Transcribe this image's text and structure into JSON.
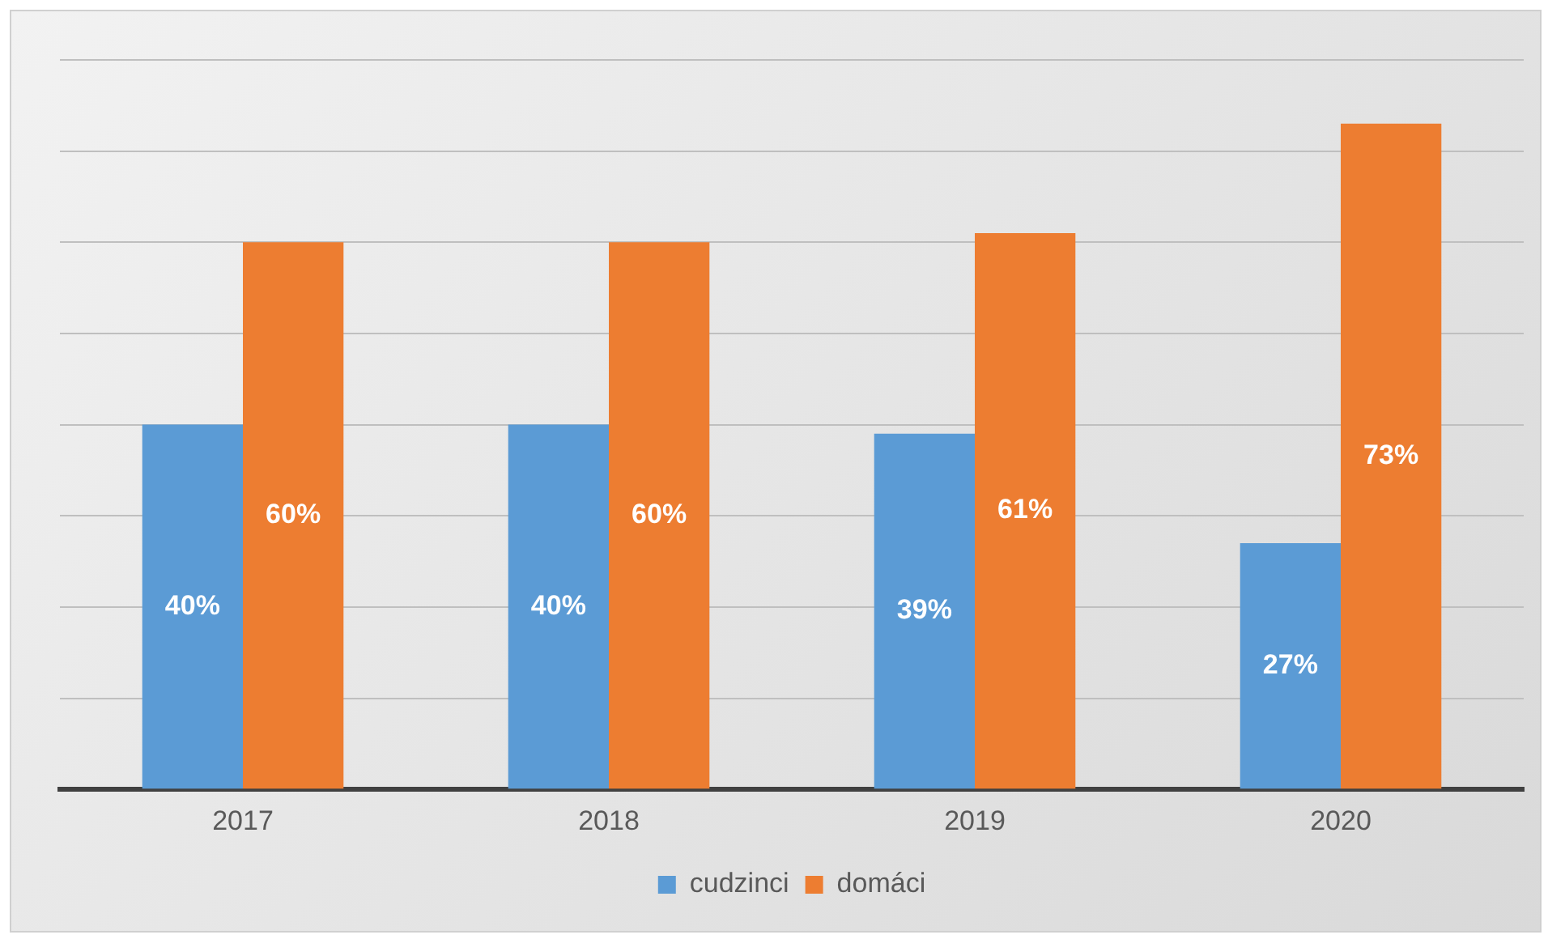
{
  "chart_data": {
    "type": "bar",
    "categories": [
      "2017",
      "2018",
      "2019",
      "2020"
    ],
    "series": [
      {
        "name": "cudzinci",
        "color": "#5b9bd5",
        "values": [
          40,
          40,
          39,
          27
        ],
        "value_labels": [
          "40%",
          "40%",
          "39%",
          "27%"
        ]
      },
      {
        "name": "domáci",
        "color": "#ed7d31",
        "values": [
          60,
          60,
          61,
          73
        ],
        "value_labels": [
          "60%",
          "60%",
          "61%",
          "73%"
        ]
      }
    ],
    "grid": "y",
    "legend": "bottom",
    "tick_labels": "x"
  }
}
